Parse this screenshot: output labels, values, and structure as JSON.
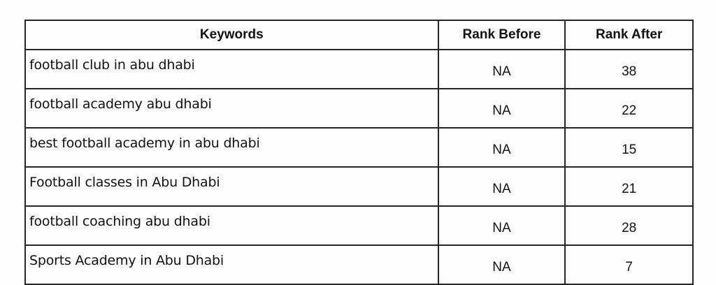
{
  "table": {
    "headers": [
      "Keywords",
      "Rank Before",
      "Rank After"
    ],
    "rows": [
      {
        "keyword": "football club in abu dhabi",
        "before": "NA",
        "after": "38"
      },
      {
        "keyword": "football academy abu dhabi",
        "before": "NA",
        "after": "22"
      },
      {
        "keyword": "best football academy in abu dhabi",
        "before": "NA",
        "after": "15"
      },
      {
        "keyword": "Football classes in Abu Dhabi",
        "before": "NA",
        "after": "21"
      },
      {
        "keyword": "football coaching abu dhabi",
        "before": "NA",
        "after": "28"
      },
      {
        "keyword": "Sports Academy in Abu Dhabi",
        "before": "NA",
        "after": "7"
      }
    ]
  }
}
